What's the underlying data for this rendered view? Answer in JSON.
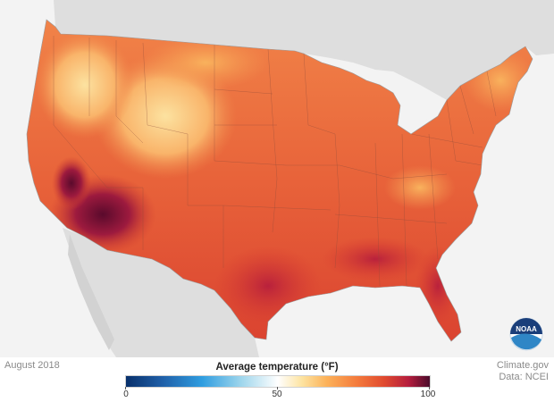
{
  "map": {
    "date": "August 2018",
    "legend": {
      "title": "Average temperature (°F)",
      "min_label": "0",
      "mid_label": "50",
      "max_label": "100",
      "colors": [
        "#08306b",
        "#2f9de0",
        "#ffffff",
        "#fcb25a",
        "#e04a2f",
        "#4a0b2b"
      ]
    },
    "credit": {
      "source": "Climate.gov",
      "data": "Data: NCEI"
    },
    "logo_text": "NOAA"
  }
}
